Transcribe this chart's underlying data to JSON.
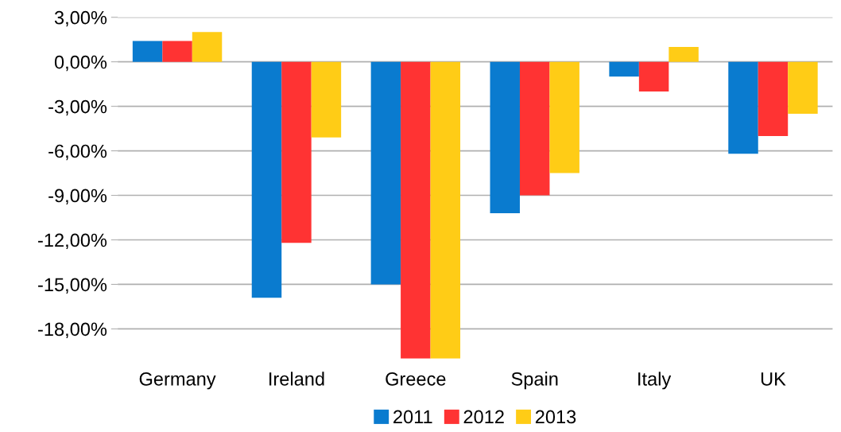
{
  "chart_data": {
    "type": "bar",
    "categories": [
      "Germany",
      "Ireland",
      "Greece",
      "Spain",
      "Italy",
      "UK"
    ],
    "series": [
      {
        "name": "2011",
        "color": "#0a7bcf",
        "values": [
          1.4,
          -15.9,
          -15.0,
          -10.2,
          -1.0,
          -6.2
        ]
      },
      {
        "name": "2012",
        "color": "#ff3333",
        "values": [
          1.4,
          -12.2,
          -20.0,
          -9.0,
          -2.0,
          -5.0
        ]
      },
      {
        "name": "2013",
        "color": "#ffcc16",
        "values": [
          2.0,
          -5.1,
          -20.0,
          -7.5,
          1.0,
          -3.5
        ]
      }
    ],
    "ylim": [
      -20,
      3
    ],
    "yticks": [
      {
        "value": 3,
        "label": "3,00%"
      },
      {
        "value": 0,
        "label": "0,00%"
      },
      {
        "value": -3,
        "label": "-3,00%"
      },
      {
        "value": -6,
        "label": "-6,00%"
      },
      {
        "value": -9,
        "label": "-9,00%"
      },
      {
        "value": -12,
        "label": "-12,00%"
      },
      {
        "value": -15,
        "label": "-15,00%"
      },
      {
        "value": -18,
        "label": "-18,00%"
      }
    ],
    "grid": "y",
    "legend": "bottom"
  }
}
